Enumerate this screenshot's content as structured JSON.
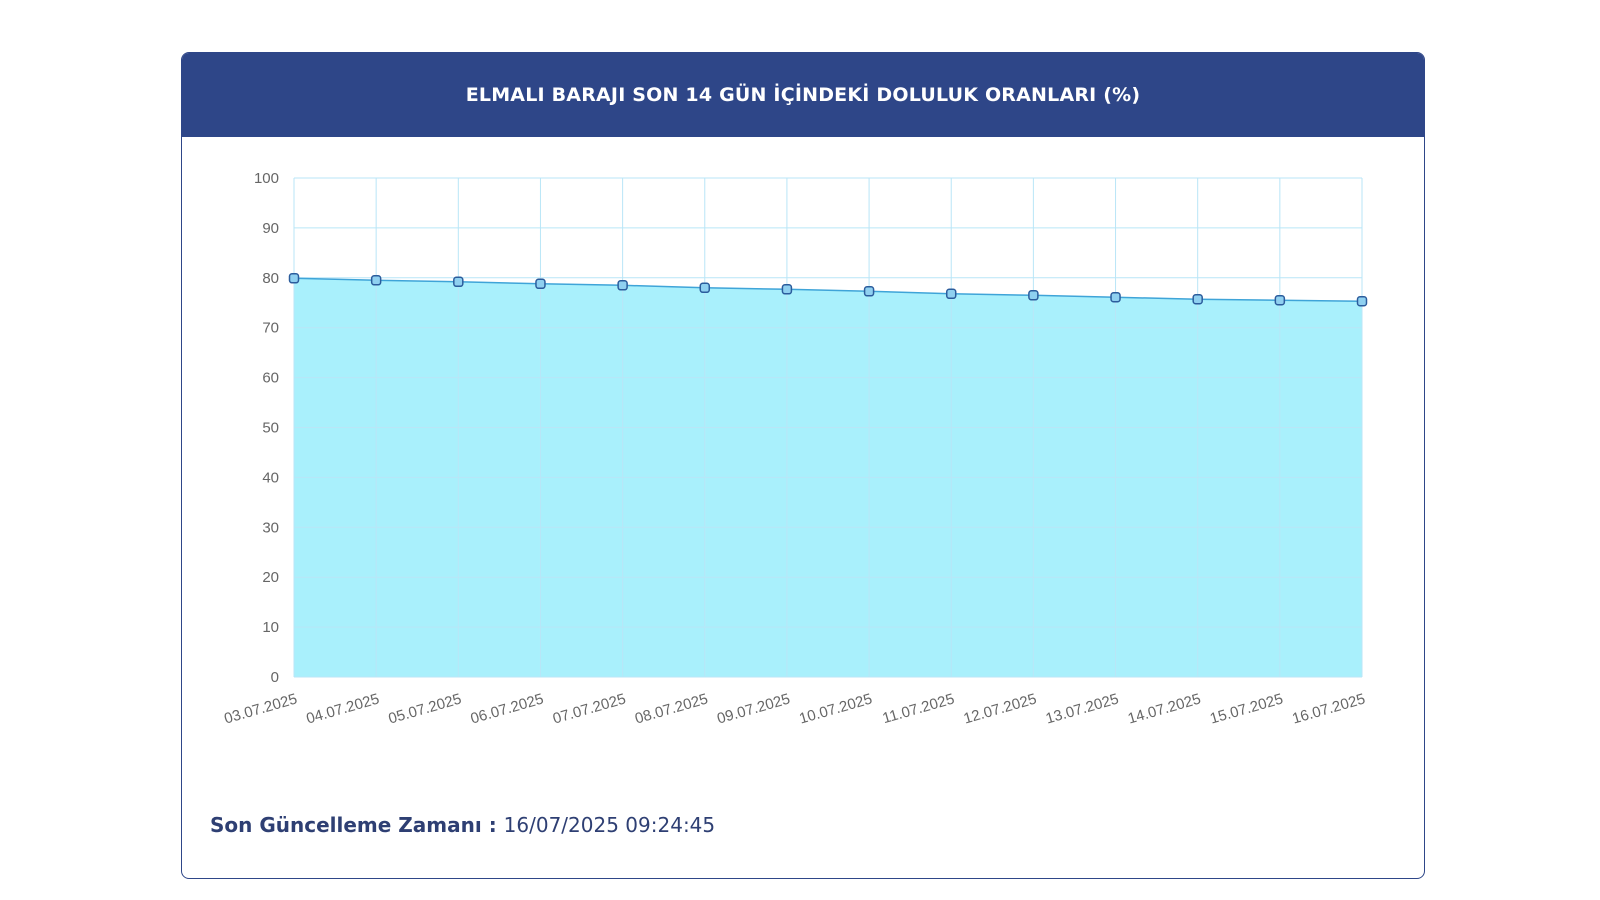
{
  "card": {
    "title": "ELMALI BARAJI SON 14 GÜN İÇİNDEKİ DOLULUK ORANLARI (%)"
  },
  "footer": {
    "update_label": "Son Güncelleme Zamanı",
    "update_separator": " : ",
    "update_value": "16/07/2025 09:24:45"
  },
  "colors": {
    "header_bg": "#2e4688",
    "area_fill": "#a9f0fc",
    "line": "#3fa4d8",
    "marker_fill": "#8fd0f0",
    "marker_stroke": "#2b5c9c",
    "grid": "#b9e6f7"
  },
  "chart_data": {
    "type": "area",
    "title": "",
    "xlabel": "",
    "ylabel": "",
    "ylim": [
      0,
      100
    ],
    "yticks": [
      0,
      10,
      20,
      30,
      40,
      50,
      60,
      70,
      80,
      90,
      100
    ],
    "grid": true,
    "categories": [
      "03.07.2025",
      "04.07.2025",
      "05.07.2025",
      "06.07.2025",
      "07.07.2025",
      "08.07.2025",
      "09.07.2025",
      "10.07.2025",
      "11.07.2025",
      "12.07.2025",
      "13.07.2025",
      "14.07.2025",
      "15.07.2025",
      "16.07.2025"
    ],
    "values": [
      79.9,
      79.5,
      79.2,
      78.8,
      78.5,
      78.0,
      77.7,
      77.3,
      76.8,
      76.5,
      76.1,
      75.7,
      75.5,
      75.3
    ]
  }
}
